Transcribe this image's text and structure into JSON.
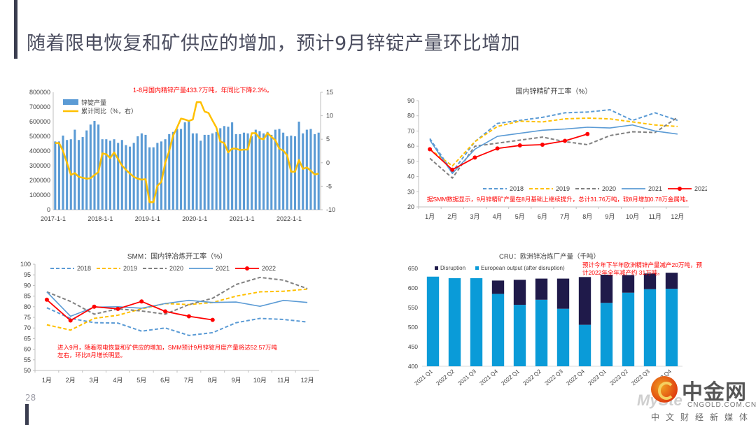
{
  "page": {
    "title": "随着限电恢复和矿供应的增加，预计9月锌锭产量环比增加",
    "page_number": "28"
  },
  "watermark": {
    "brand": "中金网",
    "url": "CNGOLD.COM.CN",
    "tagline": "中文财经新媒体",
    "ghost_text": "MySte"
  },
  "colors": {
    "bar_blue": "#5b9bd5",
    "line_gold": "#ffc000",
    "y2018": "#5b9bd5",
    "y2019": "#ffc000",
    "y2020": "#808080",
    "y2021": "#5b9bd5",
    "y2022": "#ff0000",
    "disruption": "#1f1a4a",
    "european": "#0a9bd8",
    "annotation": "#ff0000"
  },
  "chart_data": [
    {
      "id": "chart1",
      "type": "bar",
      "title": "",
      "annotation": "1-8月国内精锌产量433.7万吨，年同比下降2.3%。",
      "legend": [
        "锌锭产量",
        "累计同比（%，右）"
      ],
      "legend_placement": "top-left",
      "x_tick_labels": [
        "2017-1-1",
        "2018-1-1",
        "2019-1-1",
        "2020-1-1",
        "2021-1-1",
        "2022-1-1"
      ],
      "x_tick_index": [
        0,
        12,
        24,
        36,
        48,
        60
      ],
      "ylim": [
        0,
        800000
      ],
      "y_ticks": [
        "0",
        "100000",
        "200000",
        "300000",
        "400000",
        "500000",
        "600000",
        "700000",
        "800000"
      ],
      "y2lim": [
        -10,
        15
      ],
      "y2_ticks": [
        "-10",
        "-5",
        "0",
        "5",
        "10",
        "15"
      ],
      "series": [
        {
          "name": "锌锭产量",
          "type": "bar",
          "values": [
            465000,
            465000,
            505000,
            475000,
            480000,
            545000,
            475000,
            495000,
            540000,
            580000,
            605000,
            580000,
            480000,
            480000,
            470000,
            480000,
            455000,
            475000,
            440000,
            430000,
            455000,
            500000,
            520000,
            510000,
            425000,
            425000,
            455000,
            465000,
            480000,
            515000,
            530000,
            550000,
            550000,
            595000,
            605000,
            520000,
            520000,
            470000,
            510000,
            510000,
            520000,
            530000,
            555000,
            570000,
            565000,
            595000,
            515000,
            515000,
            525000,
            520000,
            500000,
            545000,
            535000,
            520000,
            530000,
            510000,
            545000,
            550000,
            525000,
            500000,
            505000,
            500000,
            600000,
            520000,
            545000,
            550000,
            515000,
            525000
          ],
          "color": "#5b9bd5"
        },
        {
          "name": "累计同比（%，右）",
          "type": "line",
          "values": [
            4.2,
            4.2,
            2.5,
            0,
            -2.6,
            -2.2,
            -3,
            -3.2,
            -3.4,
            -3.3,
            -2.6,
            -2.0,
            2.0,
            1.8,
            1.0,
            2.2,
            0.8,
            -0.6,
            -1.5,
            -2.3,
            -3.0,
            -3.4,
            -3.6,
            -3.5,
            -8.4,
            -8.4,
            -4.9,
            -4.1,
            0,
            2.5,
            5.8,
            7.5,
            9.4,
            9.2,
            8.9,
            9.2,
            12.9,
            12.9,
            10.9,
            10.6,
            9.0,
            7.5,
            4.5,
            4.2,
            2.2,
            3.0,
            3.0,
            2.7,
            2.8,
            2.8,
            6.3,
            6.3,
            5.2,
            5.0,
            6.3,
            5.5,
            4.8,
            3.0,
            2.6,
            1.6,
            -1.9,
            -1.9,
            0.6,
            -1.3,
            -1.0,
            -1.7,
            -2.5,
            -2.3
          ],
          "color": "#ffc000"
        }
      ]
    },
    {
      "id": "chart2",
      "type": "line",
      "title": "国内锌精矿开工率（%）",
      "annotation": "据SMM数据显示，9月锌精矿产量在8月基础上继续提升，总计31.76万吨，较8月增加0.78万金属吨。",
      "categories": [
        "1月",
        "2月",
        "3月",
        "4月",
        "5月",
        "6月",
        "7月",
        "8月",
        "9月",
        "10月",
        "11月",
        "12月"
      ],
      "ylim": [
        20,
        90
      ],
      "y_ticks": [
        "20",
        "30",
        "40",
        "50",
        "60",
        "70",
        "80",
        "90"
      ],
      "legend_placement": "bottom",
      "series": [
        {
          "name": "2018",
          "style": "dashed",
          "color": "#5b9bd5",
          "values": [
            65,
            43,
            63,
            75,
            77,
            79,
            82,
            82.5,
            84,
            77,
            82,
            77
          ]
        },
        {
          "name": "2019",
          "style": "dashed",
          "color": "#ffc000",
          "values": [
            58,
            47,
            63,
            73,
            76.5,
            76,
            78,
            78.5,
            78,
            76,
            74,
            73
          ]
        },
        {
          "name": "2020",
          "style": "dashed",
          "color": "#808080",
          "values": [
            52,
            39,
            60,
            62,
            64,
            66,
            63,
            61,
            67,
            69.5,
            69,
            79
          ]
        },
        {
          "name": "2021",
          "style": "solid",
          "color": "#5b9bd5",
          "values": [
            64,
            42,
            58,
            66.5,
            68.5,
            70.5,
            71.3,
            72.5,
            72,
            74,
            70,
            68
          ]
        },
        {
          "name": "2022",
          "style": "solid-marker",
          "color": "#ff0000",
          "values": [
            58,
            44.5,
            52.5,
            58.5,
            60.5,
            61,
            63.5,
            68
          ]
        }
      ]
    },
    {
      "id": "chart3",
      "type": "line",
      "title": "SMM：国内锌冶炼开工率（%）",
      "annotation_lines": [
        "进入9月，随着限电恢复和矿供应的增加，SMM预计9月锌锭月度产量将达52.57万吨",
        "左右，环比8月增长明显。"
      ],
      "categories": [
        "1月",
        "2月",
        "3月",
        "4月",
        "5月",
        "6月",
        "7月",
        "8月",
        "9月",
        "10月",
        "11月",
        "12月"
      ],
      "ylim": [
        50,
        100
      ],
      "y_ticks": [
        "50",
        "55",
        "60",
        "65",
        "70",
        "75",
        "80",
        "85",
        "90",
        "95",
        "100"
      ],
      "legend_placement": "top",
      "series": [
        {
          "name": "2018",
          "style": "dashed",
          "color": "#5b9bd5",
          "values": [
            79.5,
            74.5,
            72.5,
            72.3,
            68.5,
            70,
            66.5,
            67.8,
            72.5,
            74.5,
            74,
            72.8
          ]
        },
        {
          "name": "2019",
          "style": "dashed",
          "color": "#ffc000",
          "values": [
            71.5,
            69,
            74.5,
            76,
            79,
            81.5,
            81,
            82,
            85,
            87,
            87.3,
            88.3
          ]
        },
        {
          "name": "2020",
          "style": "dashed",
          "color": "#808080",
          "values": [
            87,
            82.5,
            76.5,
            79,
            78,
            76.5,
            81,
            84,
            90.5,
            93.8,
            92.5,
            88.5
          ]
        },
        {
          "name": "2021",
          "style": "solid",
          "color": "#5b9bd5",
          "values": [
            87,
            75.5,
            79.8,
            80,
            79.3,
            81.5,
            83,
            82,
            82.2,
            80.2,
            83,
            82
          ]
        },
        {
          "name": "2022",
          "style": "solid-marker",
          "color": "#ff0000",
          "values": [
            83.3,
            73.5,
            80,
            79,
            82.5,
            77.8,
            75.5,
            73.8
          ]
        }
      ]
    },
    {
      "id": "chart4",
      "type": "bar",
      "stacked": true,
      "title": "CRU：欧洲锌冶炼厂产量（千吨）",
      "annotation_lines": [
        "预计今年下半年欧洲精锌产量减产20万吨，预",
        "计2022年全年减产约 31万吨。"
      ],
      "categories": [
        "2021 Q1",
        "2022 Q2",
        "2021 Q3",
        "2021 Q4",
        "2022 Q1",
        "2022 Q2",
        "2022 Q3",
        "2022 Q4",
        "2023 Q1",
        "2023 Q2",
        "2023 Q3",
        "2023 Q4"
      ],
      "ylim": [
        400,
        650
      ],
      "y_ticks": [
        "400",
        "450",
        "500",
        "550",
        "600",
        "650"
      ],
      "legend_placement": "top-left",
      "series": [
        {
          "name": "European output (after disruption)",
          "color": "#0a9bd8",
          "values": [
            629,
            625,
            625,
            585,
            557,
            570,
            547,
            506,
            562,
            588,
            597,
            598
          ]
        },
        {
          "name": "Disruption",
          "color": "#1f1a4a",
          "values": [
            0,
            0,
            0,
            34,
            64,
            54,
            77,
            122,
            72,
            45,
            40,
            41
          ]
        }
      ],
      "legend": [
        "Disruption",
        "European output (after disruption)"
      ]
    }
  ]
}
